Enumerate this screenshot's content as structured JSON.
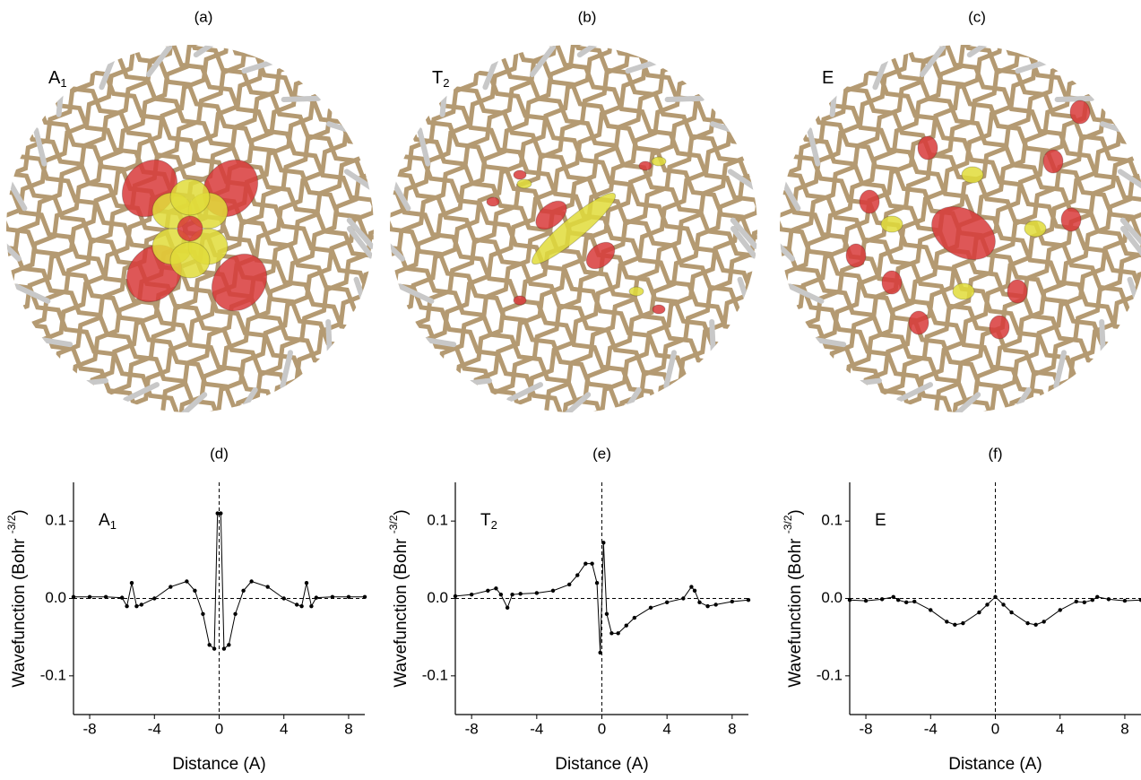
{
  "panels": [
    {
      "label": "(a)",
      "symmetry": [
        "A",
        "1"
      ]
    },
    {
      "label": "(b)",
      "symmetry": [
        "T",
        "2"
      ]
    },
    {
      "label": "(c)",
      "symmetry": [
        "E"
      ]
    }
  ],
  "chart_data": [
    {
      "type": "line",
      "title": "(d)",
      "annotation": [
        "A",
        "1"
      ],
      "x_label": "Distance (A)",
      "y_label": [
        "Wavefunction (Bohr ",
        "-3/2",
        ")"
      ],
      "x": [
        -9,
        -8,
        -7,
        -6,
        -5.7,
        -5.4,
        -5.1,
        -4.8,
        -4,
        -3,
        -2,
        -1.5,
        -1,
        -0.6,
        -0.3,
        -0.1,
        0.1,
        0.3,
        0.6,
        1,
        1.5,
        2,
        3,
        4,
        4.8,
        5.1,
        5.4,
        5.7,
        6,
        7,
        8,
        9
      ],
      "values": [
        0.002,
        0.002,
        0.002,
        0.001,
        -0.01,
        0.02,
        -0.01,
        -0.008,
        0,
        0.015,
        0.022,
        0.01,
        -0.02,
        -0.06,
        -0.065,
        0.11,
        0.11,
        -0.065,
        -0.06,
        -0.02,
        0.01,
        0.022,
        0.015,
        0,
        -0.008,
        -0.01,
        0.02,
        -0.01,
        0.001,
        0.002,
        0.002,
        0.002
      ],
      "color": "#000000",
      "xlim": [
        -9,
        9
      ],
      "ylim": [
        -0.15,
        0.15
      ],
      "xticks": [
        -8,
        -4,
        0,
        4,
        8
      ],
      "yticks": [
        -0.1,
        {
          "value": 0,
          "label": "0.0"
        },
        0.1
      ]
    },
    {
      "type": "line",
      "title": "(e)",
      "annotation": [
        "T",
        "2"
      ],
      "x_label": "Distance (A)",
      "y_label": [
        "Wavefunction (Bohr ",
        "-3/2",
        ")"
      ],
      "x": [
        -9,
        -8,
        -7,
        -6.5,
        -6.2,
        -5.8,
        -5.5,
        -5,
        -4,
        -3,
        -2,
        -1.5,
        -1,
        -0.6,
        -0.3,
        -0.1,
        0.1,
        0.3,
        0.6,
        1,
        1.5,
        2,
        3,
        4,
        5,
        5.5,
        5.7,
        6,
        6.5,
        7,
        8,
        9
      ],
      "values": [
        0.003,
        0.005,
        0.01,
        0.013,
        0.005,
        -0.012,
        0.005,
        0.006,
        0.007,
        0.01,
        0.018,
        0.03,
        0.045,
        0.045,
        0.02,
        -0.07,
        0.072,
        -0.02,
        -0.045,
        -0.045,
        -0.035,
        -0.025,
        -0.012,
        -0.005,
        0,
        0.015,
        0.01,
        -0.005,
        -0.01,
        -0.008,
        -0.004,
        -0.002
      ],
      "color": "#000000",
      "xlim": [
        -9,
        9
      ],
      "ylim": [
        -0.15,
        0.15
      ],
      "xticks": [
        -8,
        -4,
        0,
        4,
        8
      ],
      "yticks": [
        -0.1,
        {
          "value": 0,
          "label": "0.0"
        },
        0.1
      ]
    },
    {
      "type": "line",
      "title": "(f)",
      "annotation": [
        "E"
      ],
      "x_label": "Distance (A)",
      "y_label": [
        "Wavefunction (Bohr ",
        "-3/2",
        ")"
      ],
      "x": [
        -9,
        -8,
        -7,
        -6.3,
        -6,
        -5.5,
        -5,
        -4,
        -3,
        -2.5,
        -2,
        -1,
        -0.5,
        0,
        0.5,
        1,
        2,
        2.5,
        3,
        4,
        5,
        5.5,
        6,
        6.3,
        7,
        8,
        9
      ],
      "values": [
        -0.002,
        -0.003,
        -0.001,
        0.002,
        -0.002,
        -0.005,
        -0.004,
        -0.015,
        -0.03,
        -0.034,
        -0.032,
        -0.018,
        -0.008,
        0.002,
        -0.008,
        -0.018,
        -0.032,
        -0.034,
        -0.03,
        -0.015,
        -0.004,
        -0.005,
        -0.002,
        0.002,
        -0.001,
        -0.003,
        -0.002
      ],
      "color": "#000000",
      "xlim": [
        -9,
        9
      ],
      "ylim": [
        -0.15,
        0.15
      ],
      "xticks": [
        -8,
        -4,
        0,
        4,
        8
      ],
      "yticks": [
        -0.1,
        {
          "value": 0,
          "label": "0.0"
        },
        0.1
      ]
    }
  ]
}
